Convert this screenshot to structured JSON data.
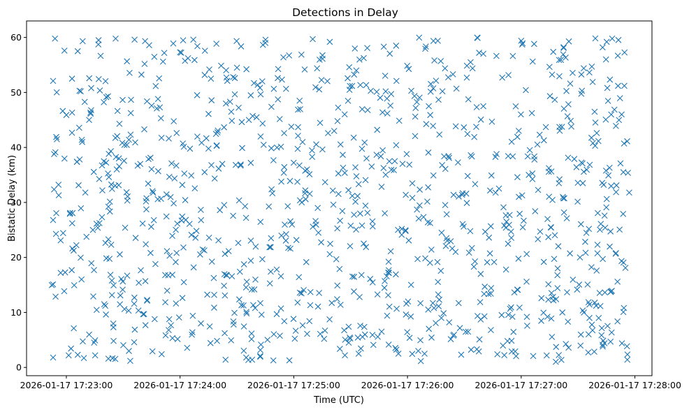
{
  "chart_data": {
    "type": "scatter",
    "title": "Detections in Delay",
    "xlabel": "Time (UTC)",
    "ylabel": "Bistatic Delay (km)",
    "x_ticks": [
      "2026-01-17 17:23:00",
      "2026-01-17 17:24:00",
      "2026-01-17 17:25:00",
      "2026-01-17 17:26:00",
      "2026-01-17 17:27:00",
      "2026-01-17 17:28:00"
    ],
    "y_ticks": [
      0,
      10,
      20,
      30,
      40,
      50,
      60
    ],
    "xlim": [
      "2026-01-17 17:22:39",
      "2026-01-17 17:28:09"
    ],
    "ylim": [
      -1.5,
      63
    ],
    "marker": "x",
    "color": "#1f77b4",
    "grid": false,
    "x_range": [
      "2026-01-17 17:22:52",
      "2026-01-17 17:27:57"
    ],
    "y_range": [
      1,
      60
    ],
    "point_count": 1100,
    "points": [
      [
        "2026-01-17 17:22:54",
        59.8
      ],
      [
        "2026-01-17 17:22:53",
        52.1
      ],
      [
        "2026-01-17 17:22:53",
        26.8
      ],
      [
        "2026-01-17 17:22:53",
        15.1
      ],
      [
        "2026-01-17 17:22:53",
        1.8
      ],
      [
        "2026-01-17 17:22:55",
        41.5
      ],
      [
        "2026-01-17 17:22:56",
        31.3
      ],
      [
        "2026-01-17 17:22:57",
        17.2
      ],
      [
        "2026-01-17 17:22:57",
        23.1
      ],
      [
        "2026-01-17 17:22:59",
        57.6
      ],
      [
        "2026-01-17 17:23:00",
        45.9
      ],
      [
        "2026-01-17 17:23:02",
        28.1
      ],
      [
        "2026-01-17 17:23:03",
        52.5
      ],
      [
        "2026-01-17 17:23:06",
        57.5
      ],
      [
        "2026-01-17 17:23:06",
        2.3
      ],
      [
        "2026-01-17 17:23:08",
        16.0
      ],
      [
        "2026-01-17 17:23:10",
        31.8
      ],
      [
        "2026-01-17 17:23:12",
        45.0
      ],
      [
        "2026-01-17 17:23:14",
        25.0
      ],
      [
        "2026-01-17 17:23:17",
        59.5
      ],
      [
        "2026-01-17 17:23:19",
        32.2
      ],
      [
        "2026-01-17 17:23:20",
        11.5
      ],
      [
        "2026-01-17 17:23:22",
        49.3
      ],
      [
        "2026-01-17 17:23:24",
        15.8
      ],
      [
        "2026-01-17 17:23:26",
        59.8
      ],
      [
        "2026-01-17 17:23:28",
        44.3
      ],
      [
        "2026-01-17 17:23:31",
        25.4
      ],
      [
        "2026-01-17 17:23:33",
        41.4
      ],
      [
        "2026-01-17 17:23:33",
        3.0
      ],
      [
        "2026-01-17 17:23:36",
        59.6
      ],
      [
        "2026-01-17 17:23:39",
        37.0
      ],
      [
        "2026-01-17 17:23:41",
        9.7
      ],
      [
        "2026-01-17 17:23:42",
        30.2
      ],
      [
        "2026-01-17 17:23:45",
        47.6
      ],
      [
        "2026-01-17 17:23:47",
        18.8
      ],
      [
        "2026-01-17 17:23:51",
        55.6
      ],
      [
        "2026-01-17 17:23:54",
        6.8
      ],
      [
        "2026-01-17 17:23:58",
        36.7
      ],
      [
        "2026-01-17 17:24:00",
        57.3
      ],
      [
        "2026-01-17 17:24:02",
        15.5
      ],
      [
        "2026-01-17 17:24:05",
        26.1
      ],
      [
        "2026-01-17 17:24:07",
        59.6
      ],
      [
        "2026-01-17 17:24:09",
        49.5
      ],
      [
        "2026-01-17 17:24:11",
        8.0
      ],
      [
        "2026-01-17 17:24:15",
        39.8
      ],
      [
        "2026-01-17 17:24:18",
        13.2
      ],
      [
        "2026-01-17 17:24:21",
        28.6
      ],
      [
        "2026-01-17 17:24:24",
        1.4
      ],
      [
        "2026-01-17 17:24:27",
        46.5
      ],
      [
        "2026-01-17 17:24:28",
        52.8
      ],
      [
        "2026-01-17 17:24:32",
        36.9
      ],
      [
        "2026-01-17 17:24:35",
        10.1
      ],
      [
        "2026-01-17 17:24:39",
        51.7
      ],
      [
        "2026-01-17 17:24:43",
        9.6
      ],
      [
        "2026-01-17 17:24:45",
        59.0
      ],
      [
        "2026-01-17 17:24:48",
        23.5
      ],
      [
        "2026-01-17 17:24:51",
        17.8
      ],
      [
        "2026-01-17 17:24:55",
        8.4
      ],
      [
        "2026-01-17 17:24:58",
        33.9
      ],
      [
        "2026-01-17 17:25:02",
        11.8
      ],
      [
        "2026-01-17 17:25:07",
        36.0
      ],
      [
        "2026-01-17 17:25:10",
        59.7
      ],
      [
        "2026-01-17 17:25:13",
        24.5
      ],
      [
        "2026-01-17 17:25:16",
        5.2
      ],
      [
        "2026-01-17 17:25:19",
        59.2
      ],
      [
        "2026-01-17 17:25:23",
        14.9
      ],
      [
        "2026-01-17 17:25:26",
        36.3
      ],
      [
        "2026-01-17 17:25:29",
        4.5
      ],
      [
        "2026-01-17 17:25:33",
        54.0
      ],
      [
        "2026-01-17 17:25:36",
        25.8
      ],
      [
        "2026-01-17 17:25:39",
        46.8
      ],
      [
        "2026-01-17 17:25:42",
        4.1
      ],
      [
        "2026-01-17 17:25:44",
        43.2
      ],
      [
        "2026-01-17 17:25:48",
        15.7
      ],
      [
        "2026-01-17 17:25:51",
        47.6
      ],
      [
        "2026-01-17 17:25:54",
        58.5
      ],
      [
        "2026-01-17 17:25:55",
        25.0
      ],
      [
        "2026-01-17 17:25:57",
        25.2
      ],
      [
        "2026-01-17 17:25:59",
        24.8
      ],
      [
        "2026-01-17 17:26:02",
        50.3
      ],
      [
        "2026-01-17 17:26:05",
        28.7
      ],
      [
        "2026-01-17 17:26:09",
        2.5
      ],
      [
        "2026-01-17 17:26:12",
        45.9
      ],
      [
        "2026-01-17 17:26:16",
        59.4
      ],
      [
        "2026-01-17 17:26:18",
        24.5
      ],
      [
        "2026-01-17 17:26:20",
        36.1
      ],
      [
        "2026-01-17 17:26:22",
        8.2
      ],
      [
        "2026-01-17 17:26:24",
        53.3
      ],
      [
        "2026-01-17 17:26:27",
        11.7
      ],
      [
        "2026-01-17 17:26:31",
        31.6
      ],
      [
        "2026-01-17 17:26:34",
        21.7
      ],
      [
        "2026-01-17 17:26:37",
        59.9
      ],
      [
        "2026-01-17 17:26:40",
        47.5
      ],
      [
        "2026-01-17 17:26:43",
        23.6
      ],
      [
        "2026-01-17 17:26:44",
        6.8
      ],
      [
        "2026-01-17 17:26:47",
        38.8
      ],
      [
        "2026-01-17 17:26:50",
        52.7
      ],
      [
        "2026-01-17 17:26:52",
        17.8
      ],
      [
        "2026-01-17 17:26:55",
        2.9
      ],
      [
        "2026-01-17 17:26:58",
        34.6
      ],
      [
        "2026-01-17 17:27:00",
        59.4
      ],
      [
        "2026-01-17 17:27:03",
        9.2
      ],
      [
        "2026-01-17 17:27:07",
        37.8
      ],
      [
        "2026-01-17 17:27:10",
        24.7
      ],
      [
        "2026-01-17 17:27:13",
        43.7
      ],
      [
        "2026-01-17 17:27:17",
        12.2
      ],
      [
        "2026-01-17 17:27:20",
        55.9
      ],
      [
        "2026-01-17 17:27:22",
        31.0
      ],
      [
        "2026-01-17 17:27:25",
        3.6
      ],
      [
        "2026-01-17 17:27:28",
        37.9
      ],
      [
        "2026-01-17 17:27:31",
        20.0
      ],
      [
        "2026-01-17 17:27:33",
        54.4
      ],
      [
        "2026-01-17 17:27:36",
        9.0
      ],
      [
        "2026-01-17 17:27:39",
        40.3
      ],
      [
        "2026-01-17 17:27:42",
        26.1
      ],
      [
        "2026-01-17 17:27:44",
        4.4
      ],
      [
        "2026-01-17 17:27:46",
        34.9
      ],
      [
        "2026-01-17 17:27:48",
        59.8
      ],
      [
        "2026-01-17 17:27:50",
        20.8
      ],
      [
        "2026-01-17 17:27:53",
        46.0
      ],
      [
        "2026-01-17 17:27:55",
        18.1
      ],
      [
        "2026-01-17 17:27:56",
        1.4
      ],
      [
        "2026-01-17 17:27:57",
        31.8
      ]
    ]
  }
}
